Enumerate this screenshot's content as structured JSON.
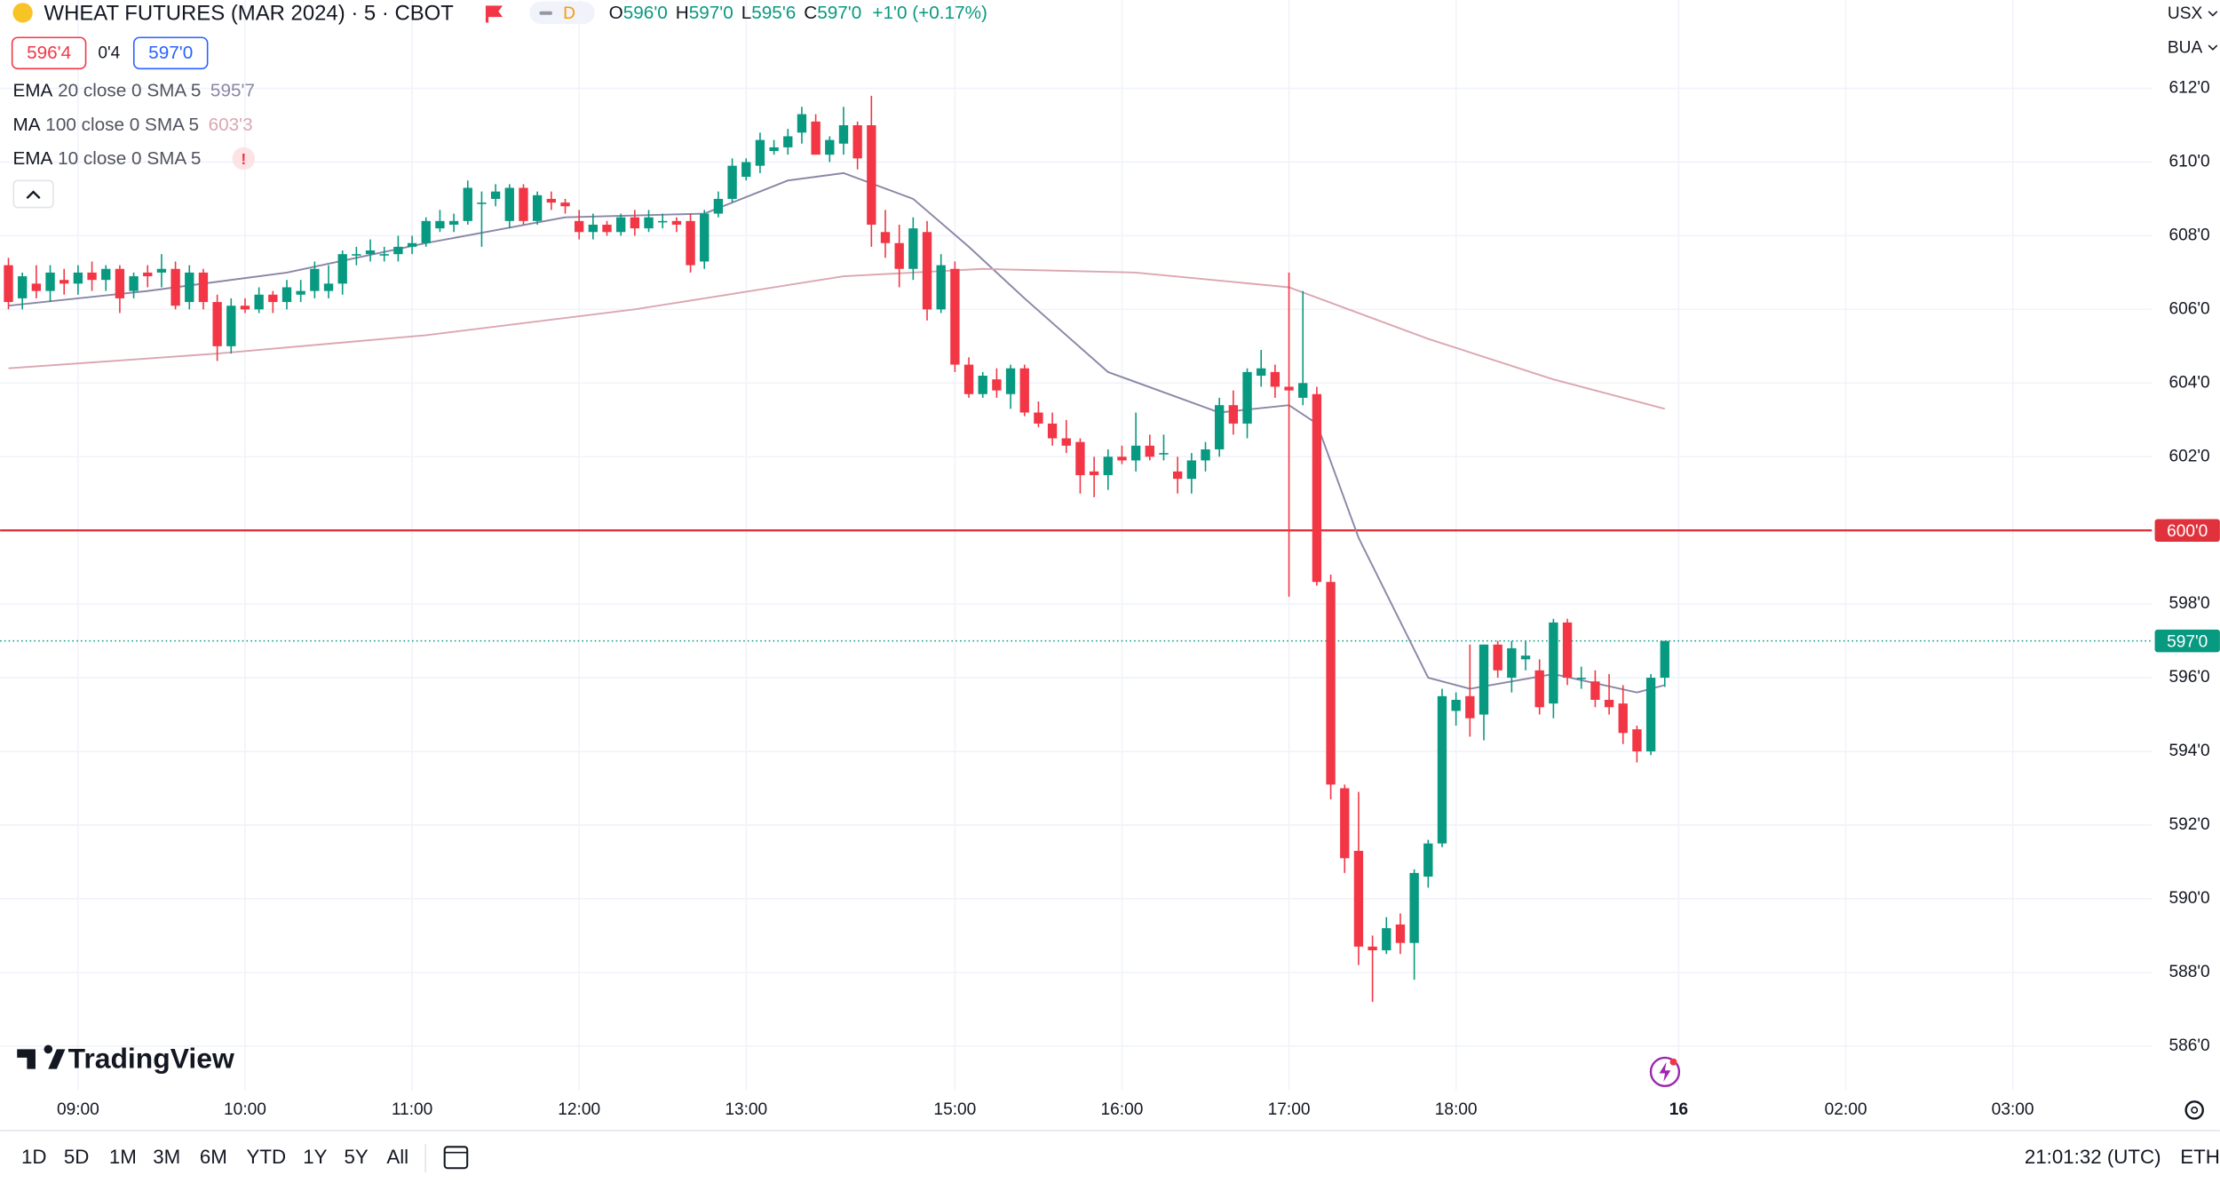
{
  "header": {
    "symbol": "WHEAT FUTURES (MAR 2024) · 5 · CBOT",
    "interval_badge": "D",
    "ohlc": [
      {
        "key": "O",
        "value": "596'0"
      },
      {
        "key": "H",
        "value": "597'0"
      },
      {
        "key": "L",
        "value": "595'6"
      },
      {
        "key": "C",
        "value": "597'0"
      }
    ],
    "change": "+1'0 (+0.17%)",
    "sell_price": "596'4",
    "spread": "0'4",
    "buy_price": "597'0",
    "currency": "USX",
    "unit": "BUA"
  },
  "chart_data": {
    "type": "candlestick",
    "up_color": "#089981",
    "down_color": "#f23645",
    "grid": true,
    "xlim": [
      -0.6,
      154.0
    ],
    "xticks": [
      {
        "value": 5,
        "label": "09:00"
      },
      {
        "value": 17,
        "label": "10:00"
      },
      {
        "value": 29,
        "label": "11:00"
      },
      {
        "value": 41,
        "label": "12:00"
      },
      {
        "value": 53,
        "label": "13:00"
      },
      {
        "value": 68,
        "label": "15:00"
      },
      {
        "value": 80,
        "label": "16:00"
      },
      {
        "value": 92,
        "label": "17:00"
      },
      {
        "value": 104,
        "label": "18:00"
      },
      {
        "value": 120,
        "label": "16",
        "bold": true
      },
      {
        "value": 132,
        "label": "02:00"
      },
      {
        "value": 144,
        "label": "03:00"
      }
    ],
    "ylim": [
      584.8,
      614.4
    ],
    "yticks": [
      {
        "value": 586,
        "label": "586'0"
      },
      {
        "value": 588,
        "label": "588'0"
      },
      {
        "value": 590,
        "label": "590'0"
      },
      {
        "value": 592,
        "label": "592'0"
      },
      {
        "value": 594,
        "label": "594'0"
      },
      {
        "value": 596,
        "label": "596'0"
      },
      {
        "value": 598,
        "label": "598'0"
      },
      {
        "value": 602,
        "label": "602'0"
      },
      {
        "value": 604,
        "label": "604'0"
      },
      {
        "value": 606,
        "label": "606'0"
      },
      {
        "value": 608,
        "label": "608'0"
      },
      {
        "value": 610,
        "label": "610'0"
      },
      {
        "value": 612,
        "label": "612'0"
      }
    ],
    "alert_line": {
      "value": 600,
      "label": "600'0",
      "color": "#e0323c"
    },
    "last_price": {
      "value": 597,
      "label": "597'0",
      "color": "#089981"
    },
    "open": [
      607.2,
      606.3,
      606.7,
      606.5,
      606.8,
      606.7,
      607.0,
      606.8,
      607.1,
      606.5,
      607.0,
      607.0,
      607.1,
      606.2,
      607.0,
      606.2,
      605.0,
      606.1,
      606.0,
      606.4,
      606.2,
      606.4,
      606.5,
      606.5,
      606.7,
      607.5,
      607.5,
      607.5,
      607.5,
      607.7,
      607.8,
      608.2,
      608.3,
      608.4,
      608.9,
      609.0,
      608.4,
      609.3,
      608.4,
      609.0,
      608.9,
      608.4,
      608.1,
      608.3,
      608.1,
      608.5,
      608.2,
      608.4,
      608.4,
      608.4,
      607.3,
      608.6,
      609.0,
      609.6,
      609.9,
      610.3,
      610.4,
      610.8,
      611.1,
      610.2,
      610.5,
      611.0,
      611.0,
      608.1,
      607.8,
      607.1,
      608.1,
      606.0,
      607.1,
      604.5,
      603.7,
      604.1,
      603.7,
      604.4,
      603.2,
      602.9,
      602.5,
      602.4,
      601.6,
      601.5,
      602.0,
      601.9,
      602.3,
      602.1,
      601.6,
      601.4,
      601.9,
      602.2,
      603.4,
      602.9,
      604.2,
      604.3,
      603.9,
      603.6,
      603.7,
      598.6,
      593.0,
      591.3,
      588.7,
      588.6,
      589.3,
      588.8,
      590.6,
      591.5,
      595.1,
      595.5,
      595.0,
      596.9,
      596.0,
      596.5,
      596.2,
      595.3,
      597.5,
      596.0,
      595.9,
      595.4,
      595.3,
      594.6,
      594.0,
      596.0
    ],
    "high": [
      607.4,
      607.0,
      607.2,
      607.2,
      607.1,
      607.2,
      607.3,
      607.2,
      607.2,
      607.0,
      607.2,
      607.5,
      607.3,
      607.2,
      607.1,
      606.4,
      606.3,
      606.3,
      606.6,
      606.5,
      606.8,
      606.8,
      607.3,
      607.2,
      607.6,
      607.7,
      607.9,
      607.7,
      608.0,
      608.0,
      608.5,
      608.7,
      608.6,
      609.5,
      609.2,
      609.4,
      609.4,
      609.4,
      609.2,
      609.2,
      609.0,
      608.7,
      608.6,
      608.4,
      608.6,
      608.7,
      608.7,
      608.6,
      608.5,
      608.6,
      608.7,
      609.2,
      610.1,
      610.1,
      610.8,
      610.6,
      610.9,
      611.5,
      611.3,
      610.7,
      611.5,
      611.1,
      611.8,
      608.7,
      608.3,
      608.5,
      608.4,
      607.5,
      607.3,
      604.7,
      604.3,
      604.4,
      604.5,
      604.5,
      603.5,
      603.2,
      603.0,
      602.5,
      602.0,
      602.2,
      602.3,
      603.2,
      602.6,
      602.6,
      602.0,
      602.1,
      602.4,
      603.6,
      603.8,
      604.4,
      604.9,
      604.5,
      607.0,
      606.5,
      603.9,
      598.8,
      593.1,
      592.9,
      589.0,
      589.5,
      589.6,
      590.8,
      591.6,
      595.7,
      595.6,
      596.9,
      596.9,
      597.0,
      597.0,
      597.0,
      596.5,
      597.6,
      597.6,
      596.3,
      596.2,
      596.1,
      595.8,
      594.7,
      596.1,
      597.0
    ],
    "low": [
      606.0,
      606.0,
      606.3,
      606.2,
      606.4,
      606.4,
      606.5,
      606.5,
      605.9,
      606.3,
      606.6,
      606.6,
      606.0,
      606.0,
      606.0,
      604.6,
      604.8,
      605.9,
      605.9,
      605.9,
      606.0,
      606.2,
      606.3,
      606.3,
      606.4,
      607.2,
      607.3,
      607.3,
      607.3,
      607.5,
      607.7,
      608.1,
      608.1,
      608.3,
      607.7,
      608.8,
      608.2,
      608.3,
      608.3,
      608.7,
      608.6,
      607.9,
      607.9,
      608.0,
      608.0,
      608.0,
      608.1,
      608.2,
      608.1,
      607.0,
      607.1,
      608.5,
      608.9,
      609.5,
      609.7,
      610.2,
      610.2,
      610.5,
      610.2,
      610.0,
      610.2,
      609.8,
      607.7,
      607.4,
      606.6,
      606.8,
      605.7,
      605.9,
      604.3,
      603.6,
      603.6,
      603.6,
      603.3,
      603.1,
      602.8,
      602.3,
      602.1,
      601.0,
      600.9,
      601.1,
      601.8,
      601.6,
      601.9,
      601.9,
      601.0,
      601.0,
      601.6,
      602.0,
      602.6,
      602.5,
      603.9,
      603.6,
      598.2,
      603.4,
      598.5,
      592.7,
      590.7,
      588.2,
      587.2,
      588.5,
      588.5,
      587.8,
      590.3,
      591.4,
      594.7,
      594.4,
      594.3,
      596.0,
      595.6,
      596.2,
      595.0,
      594.9,
      595.8,
      595.7,
      595.2,
      595.0,
      594.2,
      593.7,
      593.9,
      595.75
    ],
    "close": [
      606.2,
      606.9,
      606.5,
      607.0,
      606.7,
      607.0,
      606.8,
      607.1,
      606.3,
      606.9,
      606.9,
      607.1,
      606.1,
      607.0,
      606.2,
      605.0,
      606.1,
      606.0,
      606.4,
      606.2,
      606.6,
      606.5,
      607.1,
      606.7,
      607.5,
      607.5,
      607.6,
      607.5,
      607.7,
      607.8,
      608.4,
      608.4,
      608.4,
      609.3,
      608.9,
      609.2,
      609.3,
      608.4,
      609.1,
      608.9,
      608.8,
      608.1,
      608.3,
      608.1,
      608.5,
      608.2,
      608.5,
      608.4,
      608.3,
      607.2,
      608.6,
      609.0,
      609.9,
      610.0,
      610.6,
      610.4,
      610.7,
      611.3,
      610.2,
      610.6,
      611.0,
      610.1,
      608.3,
      607.8,
      607.1,
      608.2,
      606.0,
      607.2,
      604.5,
      603.7,
      604.2,
      603.8,
      604.4,
      603.2,
      602.9,
      602.5,
      602.3,
      601.5,
      601.5,
      602.0,
      601.9,
      602.3,
      602.0,
      602.1,
      601.4,
      601.9,
      602.2,
      603.4,
      602.9,
      604.3,
      604.4,
      603.9,
      603.8,
      604.0,
      598.6,
      593.1,
      591.1,
      588.7,
      588.6,
      589.2,
      588.8,
      590.7,
      591.5,
      595.5,
      595.4,
      594.9,
      596.9,
      596.2,
      596.8,
      596.6,
      595.2,
      597.5,
      596.0,
      596.0,
      595.4,
      595.2,
      594.5,
      594.0,
      596.0,
      597.0
    ],
    "indicators": [
      {
        "name": "EMA",
        "params": "20 close 0 SMA 5",
        "value_label": "595'7",
        "color": "#8a86a6",
        "x": [
          0,
          10,
          20,
          30,
          40,
          50,
          56,
          60,
          65,
          69,
          73,
          79,
          87,
          92,
          94,
          97,
          102,
          105,
          111,
          117,
          119
        ],
        "values": [
          606.1,
          606.5,
          607.0,
          607.8,
          608.5,
          608.6,
          609.5,
          609.7,
          609.0,
          607.7,
          606.3,
          604.3,
          603.2,
          603.4,
          602.9,
          599.8,
          596.0,
          595.7,
          596.1,
          595.6,
          595.8
        ]
      },
      {
        "name": "MA",
        "params": "100 close 0 SMA 5",
        "value_label": "603'3",
        "color": "#dba7b1",
        "x": [
          0,
          15,
          30,
          45,
          60,
          70,
          81,
          92,
          102,
          111,
          119
        ],
        "values": [
          604.4,
          604.8,
          605.3,
          606.0,
          606.9,
          607.1,
          607.0,
          606.6,
          605.2,
          604.1,
          603.3
        ]
      },
      {
        "name": "EMA",
        "params": "10 close 0 SMA 5",
        "value_label": "!",
        "color": "#f23645"
      }
    ]
  },
  "branding": "TradingView",
  "toolbar": {
    "ranges": [
      "1D",
      "5D",
      "1M",
      "3M",
      "6M",
      "YTD",
      "1Y",
      "5Y",
      "All"
    ],
    "clock": "21:01:32 (UTC)",
    "session": "ETH"
  }
}
